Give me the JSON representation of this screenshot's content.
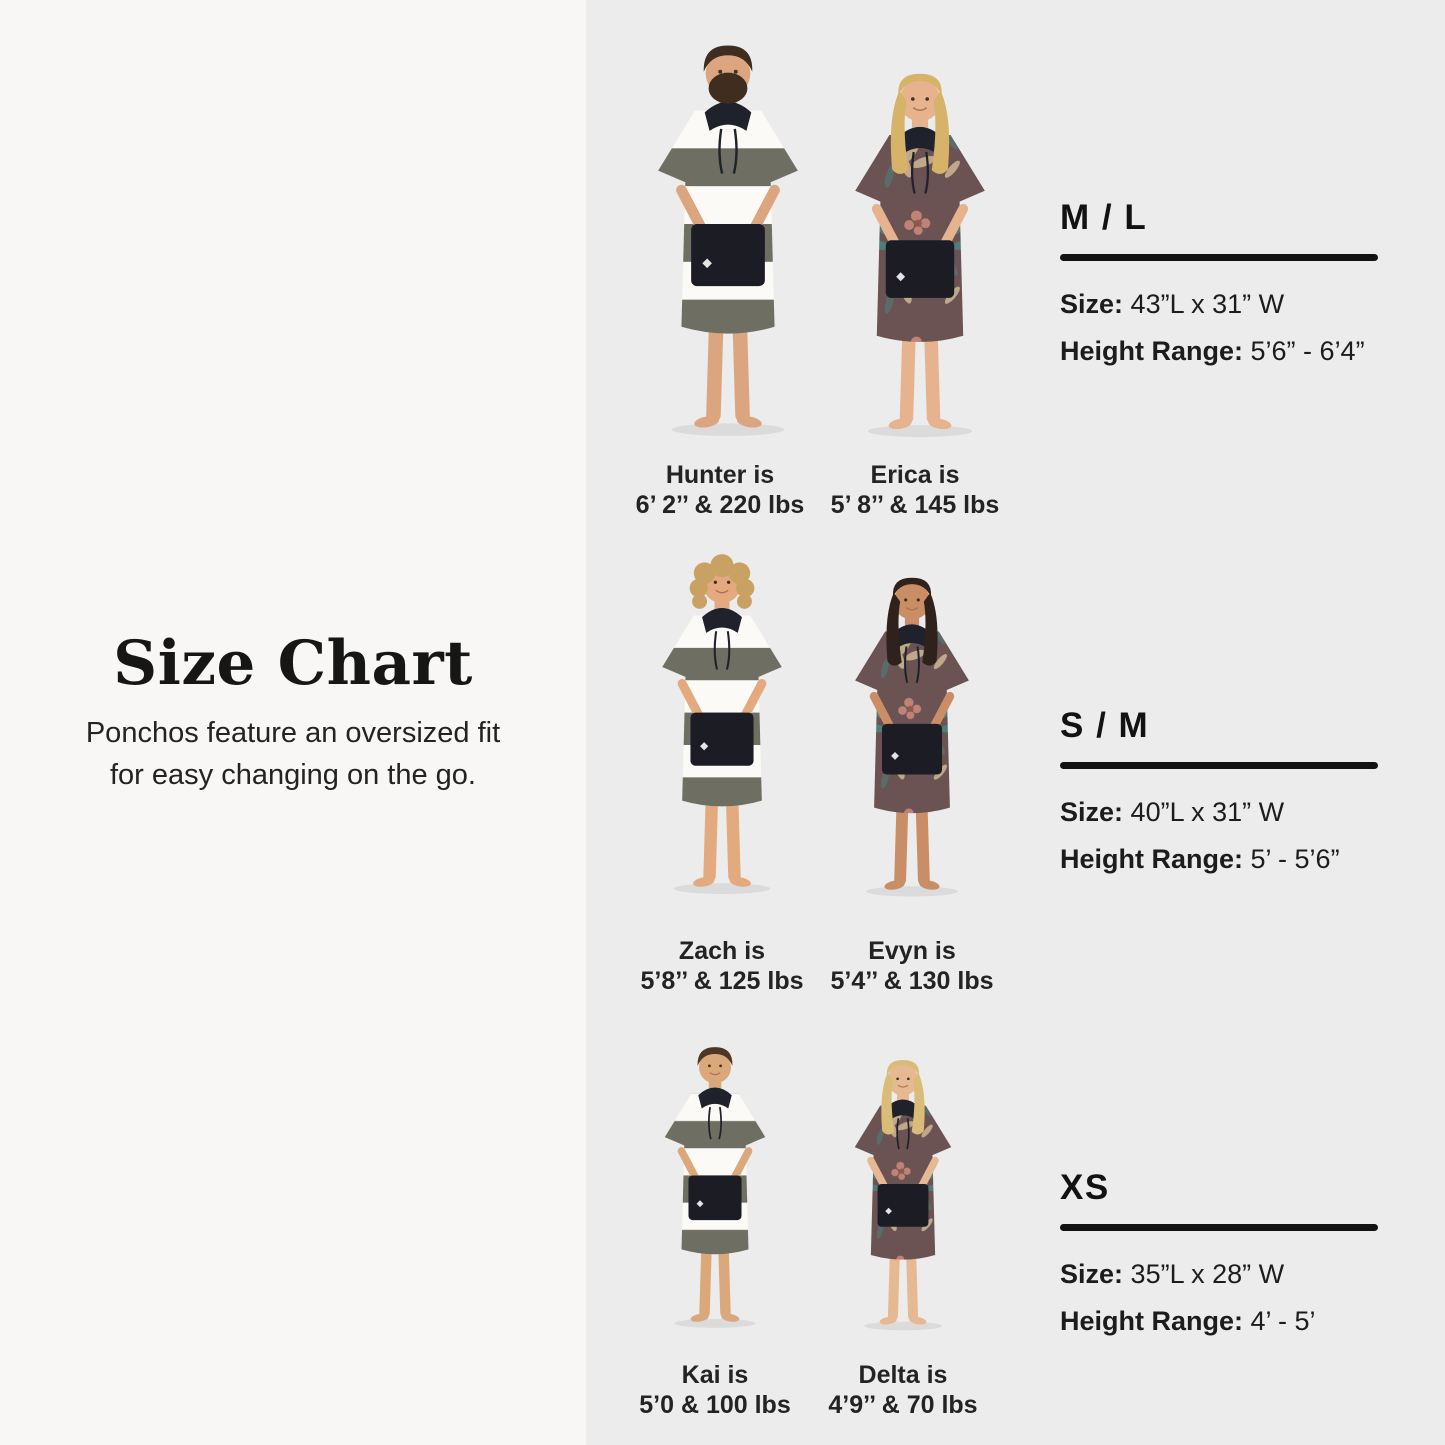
{
  "left_panel": {
    "title": "Size Chart",
    "subtitle": [
      "Ponchos feature an oversized fit",
      "for easy changing on the go."
    ]
  },
  "sections": [
    {
      "size_label": "M / L",
      "size_prefix": "Size:",
      "size_value": "43”L x 31” W",
      "height_prefix": "Height Range:",
      "height_value": "5’6” - 6’4”",
      "models": [
        {
          "name_line": "Hunter is",
          "stats_line": "6’ 2’’ & 220 lbs"
        },
        {
          "name_line": "Erica is",
          "stats_line": "5’ 8’’ & 145 lbs"
        }
      ]
    },
    {
      "size_label": "S / M",
      "size_prefix": "Size:",
      "size_value": "40”L x 31” W",
      "height_prefix": "Height Range:",
      "height_value": "5’ - 5’6”",
      "models": [
        {
          "name_line": "Zach is",
          "stats_line": "5’8’’ & 125 lbs"
        },
        {
          "name_line": "Evyn is",
          "stats_line": "5’4’’ & 130 lbs"
        }
      ]
    },
    {
      "size_label": "XS",
      "size_prefix": "Size:",
      "size_value": "35”L x 28” W",
      "height_prefix": "Height Range:",
      "height_value": "4’ - 5’",
      "models": [
        {
          "name_line": "Kai is",
          "stats_line": "5’0 & 100 lbs"
        },
        {
          "name_line": "Delta is",
          "stats_line": "4’9’’ & 70 lbs"
        }
      ]
    }
  ],
  "colors": {
    "left_bg": "#f8f7f5",
    "right_bg": "#ececec",
    "rule": "#121212",
    "hood": "#20222b",
    "pocket": "#1b1c24",
    "stripe_dark": "#6e6e63",
    "stripe_light": "#fbfaf7",
    "tropical_base": "#6b5253",
    "tropical_leaf": "#4e7e7a",
    "tropical_beige": "#bfa98a",
    "tropical_pink": "#c08275"
  }
}
